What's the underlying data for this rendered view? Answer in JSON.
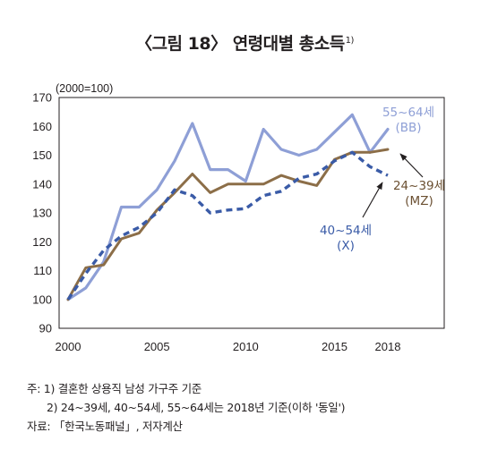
{
  "title": {
    "text": "〈그림 18〉 연령대별 총소득",
    "footnote_mark": "1)"
  },
  "chart_data": {
    "type": "line",
    "unit_label": "(2000=100)",
    "x_ticks": [
      "2000",
      "2005",
      "2010",
      "2015",
      "2018"
    ],
    "y_ticks": [
      "90",
      "100",
      "110",
      "120",
      "130",
      "140",
      "150",
      "160",
      "170"
    ],
    "xlim": [
      2000,
      2019
    ],
    "ylim": [
      90,
      170
    ],
    "grid": false,
    "series": [
      {
        "name": "55~64세 (BB)",
        "label_lines": [
          "55~64세",
          "(BB)"
        ],
        "color": "#8e9fd6",
        "style": "solid",
        "x": [
          2000,
          2001,
          2002,
          2003,
          2004,
          2005,
          2006,
          2007,
          2008,
          2009,
          2010,
          2011,
          2012,
          2013,
          2014,
          2015,
          2016,
          2017,
          2018
        ],
        "y": [
          100,
          104,
          113,
          132,
          132,
          138,
          148,
          161,
          145,
          145,
          141,
          159,
          152,
          150,
          152,
          158,
          164,
          151,
          159
        ]
      },
      {
        "name": "24~39세 (MZ)",
        "label_lines": [
          "24~39세",
          "(MZ)"
        ],
        "color": "#8c6e48",
        "style": "solid",
        "x": [
          2000,
          2001,
          2002,
          2003,
          2004,
          2005,
          2006,
          2007,
          2008,
          2009,
          2010,
          2011,
          2012,
          2013,
          2014,
          2015,
          2016,
          2017,
          2018
        ],
        "y": [
          100,
          111,
          112,
          121,
          123,
          131,
          137,
          143.5,
          137,
          140,
          140,
          140,
          143,
          141,
          139.5,
          148.5,
          151,
          151,
          152
        ]
      },
      {
        "name": "40~54세 (X)",
        "label_lines": [
          "40~54세",
          "(X)"
        ],
        "color": "#3a5ba7",
        "style": "dashed",
        "x": [
          2000,
          2001,
          2002,
          2003,
          2004,
          2005,
          2006,
          2007,
          2008,
          2009,
          2010,
          2011,
          2012,
          2013,
          2014,
          2015,
          2016,
          2017,
          2018
        ],
        "y": [
          100,
          109,
          117,
          122,
          125,
          130,
          138,
          136,
          130,
          131,
          131.5,
          136,
          137.5,
          142,
          143.5,
          148,
          151,
          146,
          143
        ]
      }
    ]
  },
  "notes": {
    "note1": "주: 1) 결혼한 상용직 남성 가구주 기준",
    "note2": "2) 24~39세, 40~54세, 55~64세는 2018년 기준(이하 '동일')",
    "source": "자료: 「한국노동패널」, 저자계산"
  }
}
